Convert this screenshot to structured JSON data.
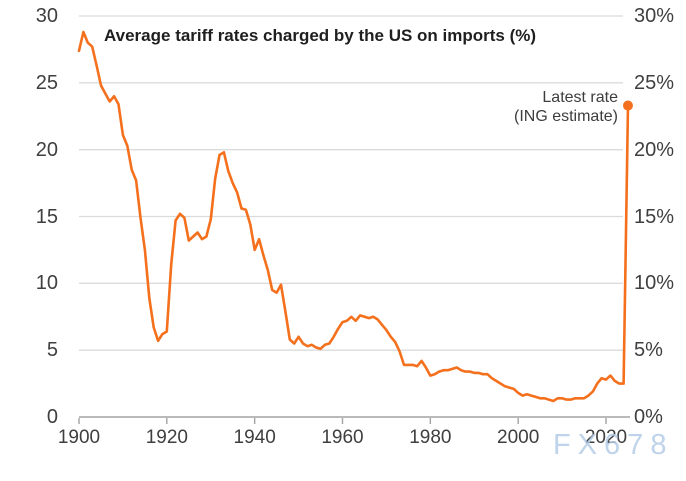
{
  "header": {
    "title": "Average tariff rates charged by the US on imports (%)"
  },
  "annotation": {
    "line1": "Latest rate",
    "line2": "(ING estimate)"
  },
  "watermark": {
    "text": "FX678"
  },
  "colors": {
    "line": "#F4701D",
    "dot": "#F4701D",
    "grid": "#DBDBDB",
    "axis": "#A3A3A3",
    "tick_text": "#3F3F3F",
    "title_text": "#1F1F1F",
    "annotation_text": "#3D3D3D",
    "watermark_text": "#B1C9E5",
    "background": "#FFFFFF"
  },
  "axes": {
    "left_ticks": [
      0,
      5,
      10,
      15,
      20,
      25,
      30
    ],
    "right_ticks": [
      "0%",
      "5%",
      "10%",
      "15%",
      "20%",
      "25%",
      "30%"
    ],
    "bottom_ticks": [
      1900,
      1920,
      1940,
      1960,
      1980,
      2000,
      2020
    ]
  },
  "chart_data": {
    "type": "line",
    "title": "Average tariff rates charged by the US on imports (%)",
    "grid": "horizontal",
    "legend": "none",
    "xlim": [
      1898,
      2029
    ],
    "ylim": [
      0,
      30
    ],
    "x_start": 1900,
    "x_step": 1,
    "series": [
      {
        "name": "Average tariff rate charged by the US on imports (%)",
        "color": "#F4701D",
        "values": [
          27.4,
          28.8,
          28.0,
          27.7,
          26.3,
          24.8,
          24.2,
          23.6,
          24.0,
          23.4,
          21.1,
          20.3,
          18.5,
          17.7,
          14.9,
          12.5,
          8.9,
          6.7,
          5.7,
          6.2,
          6.4,
          11.4,
          14.7,
          15.2,
          14.9,
          13.2,
          13.5,
          13.8,
          13.3,
          13.5,
          14.8,
          17.8,
          19.6,
          19.8,
          18.4,
          17.5,
          16.8,
          15.6,
          15.5,
          14.4,
          12.5,
          13.3,
          12.1,
          11.0,
          9.5,
          9.3,
          9.9,
          7.9,
          5.8,
          5.5,
          6.0,
          5.5,
          5.3,
          5.4,
          5.2,
          5.1,
          5.4,
          5.5,
          6.0,
          6.6,
          7.1,
          7.2,
          7.5,
          7.2,
          7.6,
          7.5,
          7.4,
          7.5,
          7.3,
          6.9,
          6.5,
          6.0,
          5.6,
          4.9,
          3.9,
          3.9,
          3.9,
          3.8,
          4.2,
          3.7,
          3.1,
          3.2,
          3.4,
          3.5,
          3.5,
          3.6,
          3.7,
          3.5,
          3.4,
          3.4,
          3.3,
          3.3,
          3.2,
          3.2,
          2.9,
          2.7,
          2.5,
          2.3,
          2.2,
          2.1,
          1.8,
          1.6,
          1.7,
          1.6,
          1.5,
          1.4,
          1.4,
          1.3,
          1.2,
          1.4,
          1.4,
          1.3,
          1.3,
          1.4,
          1.4,
          1.4,
          1.6,
          1.9,
          2.5,
          2.9,
          2.8,
          3.1,
          2.7,
          2.5,
          2.5,
          23.3
        ]
      }
    ],
    "highlight_point": {
      "x": 2025,
      "value": 23.3,
      "label": "Latest rate (ING estimate)"
    }
  }
}
